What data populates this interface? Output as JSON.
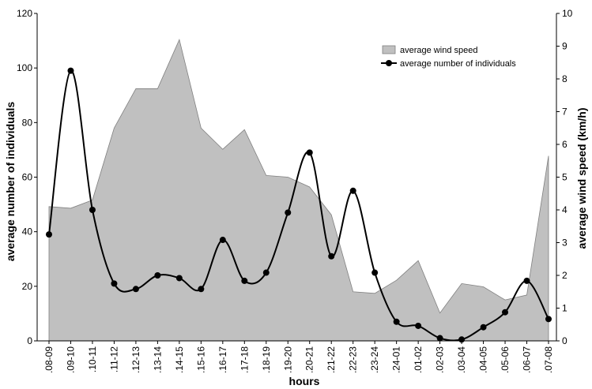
{
  "chart_data": {
    "type": "area",
    "x_label": "hours",
    "y_left_label": "average number of individuals",
    "y_right_label": "average wind speed (km/h)",
    "categories": [
      ".08-09",
      ".09-10",
      ".10-11",
      ".11-12",
      ".12-13",
      ".13-14",
      ".14-15",
      ".15-16",
      ".16-17",
      ".17-18",
      ".18-19",
      ".19-20",
      ".20-21",
      ".21-22",
      ".22-23",
      ".23-24",
      ".24-01",
      ".01-02",
      ".02-03",
      ".03-04",
      ".04-05",
      ".05-06",
      ".06-07",
      ".07-08"
    ],
    "y_left": {
      "min": 0,
      "max": 120,
      "step": 20,
      "ticks": [
        "0",
        "20",
        "40",
        "60",
        "80",
        "100",
        "120"
      ]
    },
    "y_right": {
      "min": 0,
      "max": 10,
      "step": 1,
      "ticks": [
        "0",
        "1",
        "2",
        "3",
        "4",
        "5",
        "6",
        "7",
        "8",
        "9",
        "10"
      ]
    },
    "series": [
      {
        "name": "average wind speed",
        "type": "area",
        "axis": "right",
        "color": "#c0c0c0",
        "values": [
          4.1,
          4.05,
          4.3,
          6.5,
          7.7,
          7.7,
          9.2,
          6.5,
          5.85,
          6.45,
          5.05,
          5.0,
          4.7,
          3.85,
          1.5,
          1.45,
          1.85,
          2.45,
          0.85,
          1.75,
          1.65,
          1.25,
          1.4,
          5.65
        ]
      },
      {
        "name": "average number of individuals",
        "type": "line",
        "axis": "left",
        "color": "#000000",
        "values": [
          39,
          99,
          48,
          21,
          19,
          24,
          23,
          19,
          37,
          22,
          25,
          47,
          69,
          31,
          55,
          25,
          7,
          5.5,
          1,
          0.5,
          5,
          10.5,
          22,
          8
        ]
      }
    ],
    "legend": {
      "position": "top-right",
      "entries": [
        "average wind speed",
        "average number of individuals"
      ]
    },
    "grid": false
  }
}
